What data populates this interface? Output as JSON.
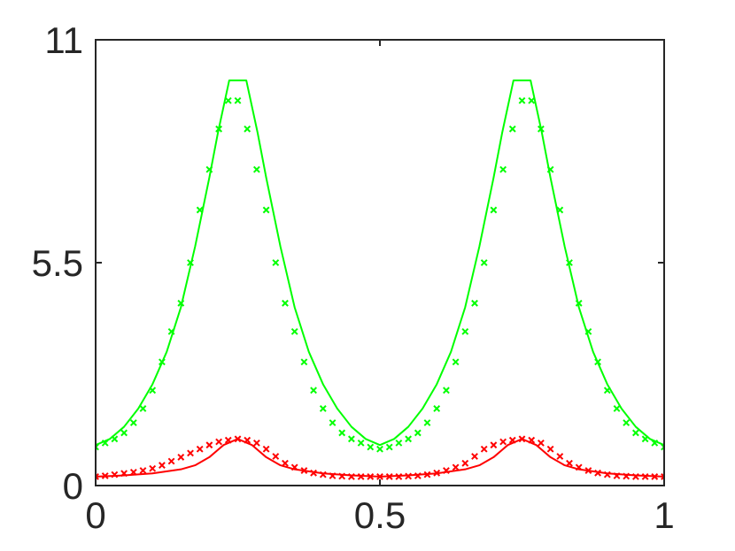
{
  "chart_data": {
    "type": "line",
    "title": "",
    "xlabel": "",
    "ylabel": "",
    "xlim": [
      0,
      1
    ],
    "ylim": [
      0,
      11
    ],
    "grid": false,
    "legend": "none",
    "x_ticks": [
      0,
      0.5,
      1
    ],
    "x_tick_labels": [
      "0",
      "0.5",
      "1"
    ],
    "y_ticks": [
      0,
      5.5,
      11
    ],
    "y_tick_labels": [
      "0",
      "5.5",
      "11"
    ],
    "colors": {
      "green": "#00ff00",
      "red": "#ff0000",
      "axis": "#262626"
    },
    "series": [
      {
        "style": "line",
        "color": "#00ff00",
        "x": [
          0,
          0.025,
          0.05,
          0.075,
          0.1,
          0.125,
          0.15,
          0.175,
          0.2,
          0.215,
          0.235,
          0.25,
          0.265,
          0.285,
          0.3,
          0.325,
          0.35,
          0.375,
          0.4,
          0.425,
          0.45,
          0.475,
          0.5,
          0.525,
          0.55,
          0.575,
          0.6,
          0.625,
          0.65,
          0.675,
          0.7,
          0.715,
          0.735,
          0.75,
          0.765,
          0.785,
          0.8,
          0.825,
          0.85,
          0.875,
          0.9,
          0.925,
          0.95,
          0.975,
          1
        ],
        "y": [
          1.0,
          1.15,
          1.45,
          1.9,
          2.5,
          3.3,
          4.4,
          5.9,
          7.6,
          8.7,
          10.0,
          10.0,
          10.0,
          8.7,
          7.6,
          5.9,
          4.4,
          3.3,
          2.5,
          1.9,
          1.45,
          1.15,
          1.0,
          1.15,
          1.45,
          1.9,
          2.5,
          3.3,
          4.4,
          5.9,
          7.6,
          8.7,
          10.0,
          10.0,
          10.0,
          8.7,
          7.6,
          5.9,
          4.4,
          3.3,
          2.5,
          1.9,
          1.45,
          1.15,
          1.0
        ]
      },
      {
        "style": "markers",
        "marker": "x",
        "color": "#00ff00",
        "x": [
          0,
          0.0167,
          0.0333,
          0.05,
          0.0667,
          0.0833,
          0.1,
          0.1167,
          0.1333,
          0.15,
          0.1667,
          0.1833,
          0.2,
          0.2167,
          0.2333,
          0.25,
          0.2667,
          0.2833,
          0.3,
          0.3167,
          0.3333,
          0.35,
          0.3667,
          0.3833,
          0.4,
          0.4167,
          0.4333,
          0.45,
          0.4667,
          0.4833,
          0.5,
          0.5167,
          0.5333,
          0.55,
          0.5667,
          0.5833,
          0.6,
          0.6167,
          0.6333,
          0.65,
          0.6667,
          0.6833,
          0.7,
          0.7167,
          0.7333,
          0.75,
          0.7667,
          0.7833,
          0.8,
          0.8167,
          0.8333,
          0.85,
          0.8667,
          0.8833,
          0.9,
          0.9167,
          0.9333,
          0.95,
          0.9667,
          0.9833,
          1
        ],
        "y": [
          0.95,
          1.05,
          1.15,
          1.3,
          1.55,
          1.9,
          2.35,
          3.05,
          3.8,
          4.5,
          5.5,
          6.8,
          7.8,
          8.8,
          9.5,
          9.5,
          8.8,
          7.8,
          6.8,
          5.5,
          4.5,
          3.8,
          3.05,
          2.35,
          1.9,
          1.55,
          1.3,
          1.15,
          1.05,
          0.95,
          0.9,
          0.95,
          1.05,
          1.15,
          1.3,
          1.55,
          1.9,
          2.35,
          3.05,
          3.8,
          4.5,
          5.5,
          6.8,
          7.8,
          8.8,
          9.5,
          9.5,
          8.8,
          7.8,
          6.8,
          5.5,
          4.5,
          3.8,
          3.05,
          2.35,
          1.9,
          1.55,
          1.3,
          1.15,
          1.05,
          0.95
        ]
      },
      {
        "style": "line",
        "color": "#ff0000",
        "x": [
          0,
          0.05,
          0.1,
          0.15,
          0.175,
          0.2,
          0.225,
          0.25,
          0.275,
          0.3,
          0.325,
          0.35,
          0.4,
          0.45,
          0.5,
          0.55,
          0.6,
          0.65,
          0.675,
          0.7,
          0.725,
          0.75,
          0.775,
          0.8,
          0.825,
          0.85,
          0.9,
          0.95,
          1
        ],
        "y": [
          0.22,
          0.25,
          0.3,
          0.4,
          0.5,
          0.7,
          1.0,
          1.15,
          1.0,
          0.7,
          0.5,
          0.4,
          0.3,
          0.25,
          0.22,
          0.25,
          0.3,
          0.4,
          0.5,
          0.7,
          1.0,
          1.15,
          1.0,
          0.7,
          0.5,
          0.4,
          0.3,
          0.25,
          0.22
        ]
      },
      {
        "style": "markers",
        "marker": "x",
        "color": "#ff0000",
        "x": [
          0,
          0.0167,
          0.0333,
          0.05,
          0.0667,
          0.0833,
          0.1,
          0.1167,
          0.1333,
          0.15,
          0.1667,
          0.1833,
          0.2,
          0.2167,
          0.2333,
          0.25,
          0.2667,
          0.2833,
          0.3,
          0.3167,
          0.3333,
          0.35,
          0.3667,
          0.3833,
          0.4,
          0.4167,
          0.4333,
          0.45,
          0.4667,
          0.4833,
          0.5,
          0.5167,
          0.5333,
          0.55,
          0.5667,
          0.5833,
          0.6,
          0.6167,
          0.6333,
          0.65,
          0.6667,
          0.6833,
          0.7,
          0.7167,
          0.7333,
          0.75,
          0.7667,
          0.7833,
          0.8,
          0.8167,
          0.8333,
          0.85,
          0.8667,
          0.8833,
          0.9,
          0.9167,
          0.9333,
          0.95,
          0.9667,
          0.9833,
          1
        ],
        "y": [
          0.22,
          0.24,
          0.27,
          0.3,
          0.33,
          0.37,
          0.42,
          0.5,
          0.6,
          0.7,
          0.8,
          0.9,
          1.0,
          1.08,
          1.12,
          1.15,
          1.12,
          1.05,
          0.9,
          0.72,
          0.55,
          0.45,
          0.37,
          0.31,
          0.27,
          0.24,
          0.23,
          0.22,
          0.22,
          0.22,
          0.22,
          0.22,
          0.22,
          0.23,
          0.24,
          0.27,
          0.31,
          0.37,
          0.45,
          0.55,
          0.72,
          0.9,
          1.0,
          1.08,
          1.12,
          1.15,
          1.12,
          1.05,
          0.9,
          0.72,
          0.55,
          0.45,
          0.37,
          0.31,
          0.27,
          0.24,
          0.23,
          0.22,
          0.22,
          0.22,
          0.22
        ]
      }
    ]
  }
}
